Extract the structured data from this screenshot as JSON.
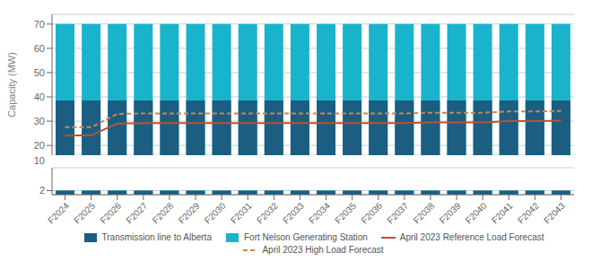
{
  "chart_data": [
    {
      "type": "bar",
      "ylabel": "Capacity (MW)",
      "categories": [
        "F2024",
        "F2025",
        "F2026",
        "F2027",
        "F2028",
        "F2029",
        "F2030",
        "F2031",
        "F2032",
        "F2033",
        "F2034",
        "F2035",
        "F2036",
        "F2037",
        "F2038",
        "F2039",
        "F2040",
        "F2041",
        "F2042",
        "F2043"
      ],
      "series": [
        {
          "name": "Transmission line to Alberta",
          "type": "bar",
          "color": "#1b5e82",
          "values": [
            38.5,
            38.5,
            38.5,
            38.5,
            38.5,
            38.5,
            38.5,
            38.5,
            38.5,
            38.5,
            38.5,
            38.5,
            38.5,
            38.5,
            38.5,
            38.5,
            38.5,
            38.5,
            38.5,
            38.5
          ]
        },
        {
          "name": "Fort Nelson Generating Station",
          "type": "bar",
          "color": "#1ab3cc",
          "values": [
            70,
            70,
            70,
            70,
            70,
            70,
            70,
            70,
            70,
            70,
            70,
            70,
            70,
            70,
            70,
            70,
            70,
            70,
            70,
            70
          ]
        },
        {
          "name": "April 2023 Reference Load Forecast",
          "type": "line",
          "line_style": "solid",
          "color": "#c0502a",
          "values": [
            24.0,
            24.2,
            29.0,
            29.2,
            29.2,
            29.2,
            29.2,
            29.2,
            29.2,
            29.2,
            29.2,
            29.2,
            29.2,
            29.2,
            29.5,
            29.5,
            29.5,
            30.0,
            30.0,
            30.2
          ]
        },
        {
          "name": "April 2023 High Load Forecast",
          "type": "line",
          "line_style": "dashed",
          "color": "#d4824a",
          "values": [
            27.5,
            27.5,
            33.0,
            33.2,
            33.2,
            33.2,
            33.2,
            33.2,
            33.2,
            33.2,
            33.2,
            33.2,
            33.2,
            33.2,
            33.5,
            33.5,
            33.5,
            34.0,
            34.0,
            34.2
          ]
        }
      ],
      "ylim": [
        16,
        74
      ],
      "yticks": [
        20,
        30,
        40,
        50,
        60,
        70
      ],
      "grid": true,
      "legend": "bottom",
      "tick_labels": "y"
    },
    {
      "type": "bar",
      "categories": [
        "F2024",
        "F2025",
        "F2026",
        "F2027",
        "F2028",
        "F2029",
        "F2030",
        "F2031",
        "F2032",
        "F2033",
        "F2034",
        "F2035",
        "F2036",
        "F2037",
        "F2038",
        "F2039",
        "F2040",
        "F2041",
        "F2042",
        "F2043"
      ],
      "series": [
        {
          "type": "bar",
          "color": "#1b5e82",
          "values": [
            2.0,
            2.0,
            2.0,
            2.0,
            2.0,
            2.0,
            2.0,
            2.0,
            2.0,
            2.0,
            2.0,
            2.0,
            2.0,
            2.0,
            2.0,
            2.0,
            2.0,
            2.0,
            2.0,
            2.0
          ]
        },
        {
          "type": "bar",
          "color": "#1ab3cc",
          "values": [
            2.0,
            2.0,
            2.0,
            2.0,
            2.0,
            2.0,
            2.0,
            2.0,
            2.0,
            2.0,
            2.0,
            2.0,
            2.0,
            2.0,
            2.0,
            2.0,
            2.0,
            2.0,
            2.0,
            2.0
          ]
        }
      ],
      "ylim": [
        0.5,
        10.5
      ],
      "yticks": [
        2
      ],
      "grid": true,
      "annotations": [
        "10"
      ]
    }
  ]
}
